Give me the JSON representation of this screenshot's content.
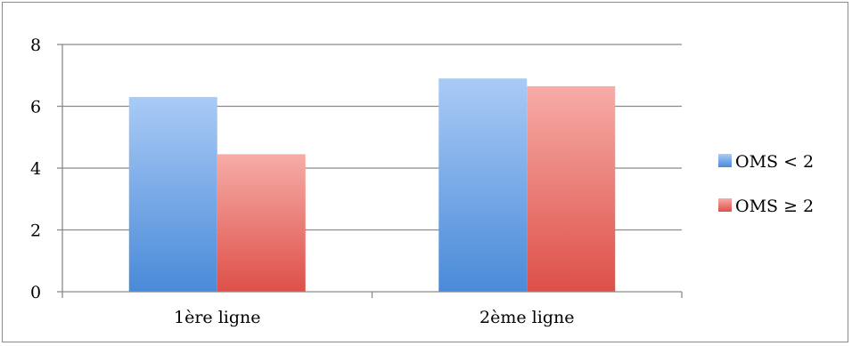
{
  "chart_data": {
    "type": "bar",
    "categories": [
      "1ère ligne",
      "2ème ligne"
    ],
    "series": [
      {
        "name": "OMS < 2",
        "values": [
          6.3,
          6.9
        ],
        "color": "#6fa3e3"
      },
      {
        "name": "OMS ≥ 2",
        "values": [
          4.45,
          6.65
        ],
        "color": "#ec7b74"
      }
    ],
    "ylim": [
      0,
      8
    ],
    "yticks": [
      0,
      2,
      4,
      6,
      8
    ],
    "grid": true,
    "legend_position": "right"
  }
}
